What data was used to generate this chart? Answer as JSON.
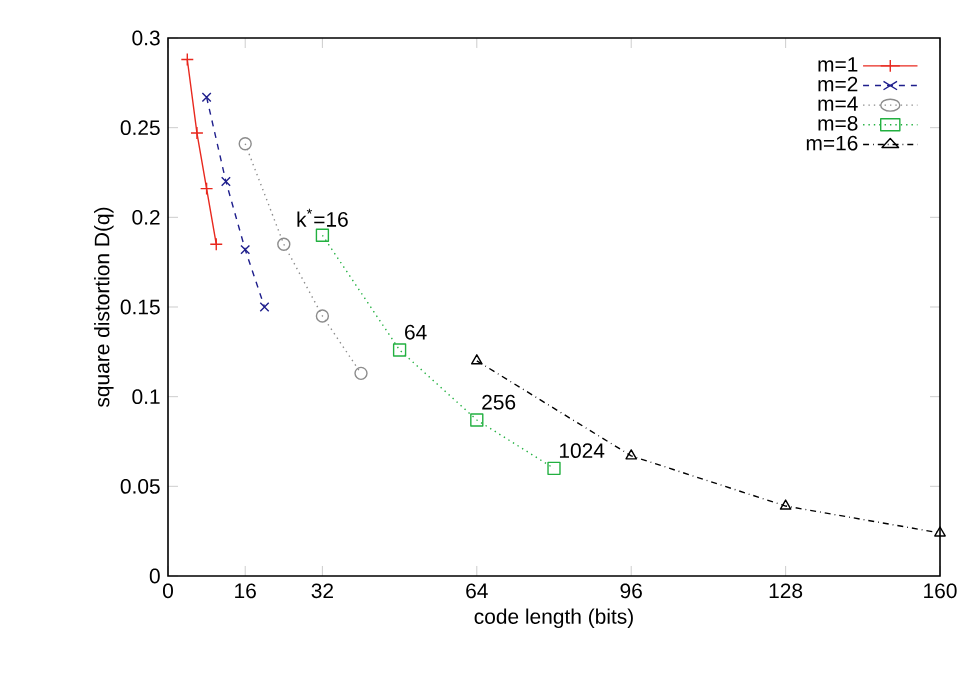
{
  "chart_data": {
    "type": "line",
    "xlabel": "code length (bits)",
    "ylabel": "square distortion D(q)",
    "xlim": [
      0,
      160
    ],
    "xticks": [
      0,
      16,
      32,
      64,
      96,
      128,
      160
    ],
    "ylim": [
      0,
      0.3
    ],
    "yticks": [
      0,
      0.05,
      0.1,
      0.15,
      0.2,
      0.25,
      0.3
    ],
    "grid": false,
    "legend": "top right",
    "series": [
      {
        "name": "m=1",
        "color": "#e8281e",
        "marker": "plus",
        "line_style": "solid",
        "x": [
          4,
          6,
          8,
          10
        ],
        "values": [
          0.288,
          0.247,
          0.216,
          0.185
        ]
      },
      {
        "name": "m=2",
        "color": "#1e1e8c",
        "marker": "cross",
        "line_style": "dashed",
        "x": [
          8,
          12,
          16,
          20
        ],
        "values": [
          0.267,
          0.22,
          0.182,
          0.15
        ]
      },
      {
        "name": "m=4",
        "color": "#8c8c8c",
        "marker": "circle",
        "line_style": "dotted",
        "x": [
          16,
          24,
          32,
          40
        ],
        "values": [
          0.241,
          0.185,
          0.145,
          0.113
        ]
      },
      {
        "name": "m=8",
        "color": "#22b040",
        "marker": "square",
        "line_style": "dotted",
        "x": [
          32,
          48,
          64,
          80
        ],
        "values": [
          0.19,
          0.126,
          0.087,
          0.06
        ]
      },
      {
        "name": "m=16",
        "color": "#000000",
        "marker": "triangle",
        "line_style": "dashdot",
        "x": [
          64,
          96,
          128,
          160
        ],
        "values": [
          0.12,
          0.067,
          0.039,
          0.024
        ]
      }
    ],
    "annotations": [
      {
        "text": "k$^{*}$=16",
        "x": 32,
        "y": 0.19
      },
      {
        "text": "64",
        "x": 48,
        "y": 0.126
      },
      {
        "text": "256",
        "x": 64,
        "y": 0.087
      },
      {
        "text": "1024",
        "x": 80,
        "y": 0.06
      }
    ]
  }
}
